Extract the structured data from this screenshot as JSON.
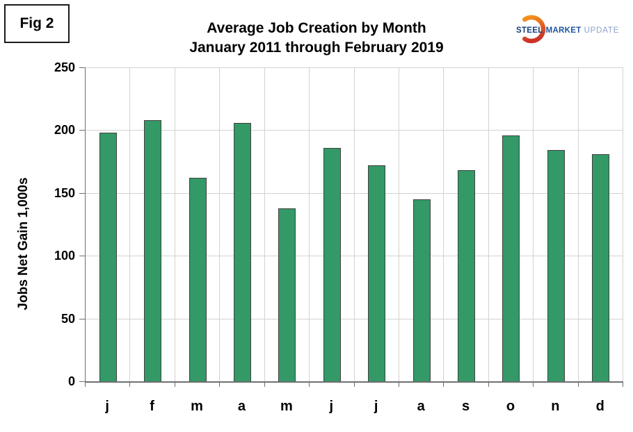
{
  "figure_label": "Fig 2",
  "title": {
    "line1": "Average Job Creation by Month",
    "line2": "January 2011 through February 2019"
  },
  "logo": {
    "steel": "STEEL",
    "market": "MARKET",
    "update": "UPDATE",
    "steel_color": "#16407c",
    "market_color": "#1e55a2",
    "update_color": "#8d9ecb",
    "crescent_gradient_top": "#f7941e",
    "crescent_gradient_bottom": "#cc3327"
  },
  "chart_data": {
    "type": "bar",
    "title": "Average Job Creation by Month",
    "subtitle": "January 2011 through February 2019",
    "xlabel": "",
    "ylabel": "Jobs Net Gain 1,000s",
    "categories": [
      "j",
      "f",
      "m",
      "a",
      "m",
      "j",
      "j",
      "a",
      "s",
      "o",
      "n",
      "d"
    ],
    "values": [
      198,
      208,
      162,
      206,
      138,
      186,
      172,
      145,
      168,
      196,
      184,
      181
    ],
    "ylim": [
      0,
      250
    ],
    "yticks": [
      0,
      50,
      100,
      150,
      200,
      250
    ],
    "grid": true,
    "legend": false,
    "bar_color": "#339966",
    "bar_border_color": "#414141",
    "grid_color": "#d2d2d2",
    "axis_color": "#6f6f6f"
  }
}
